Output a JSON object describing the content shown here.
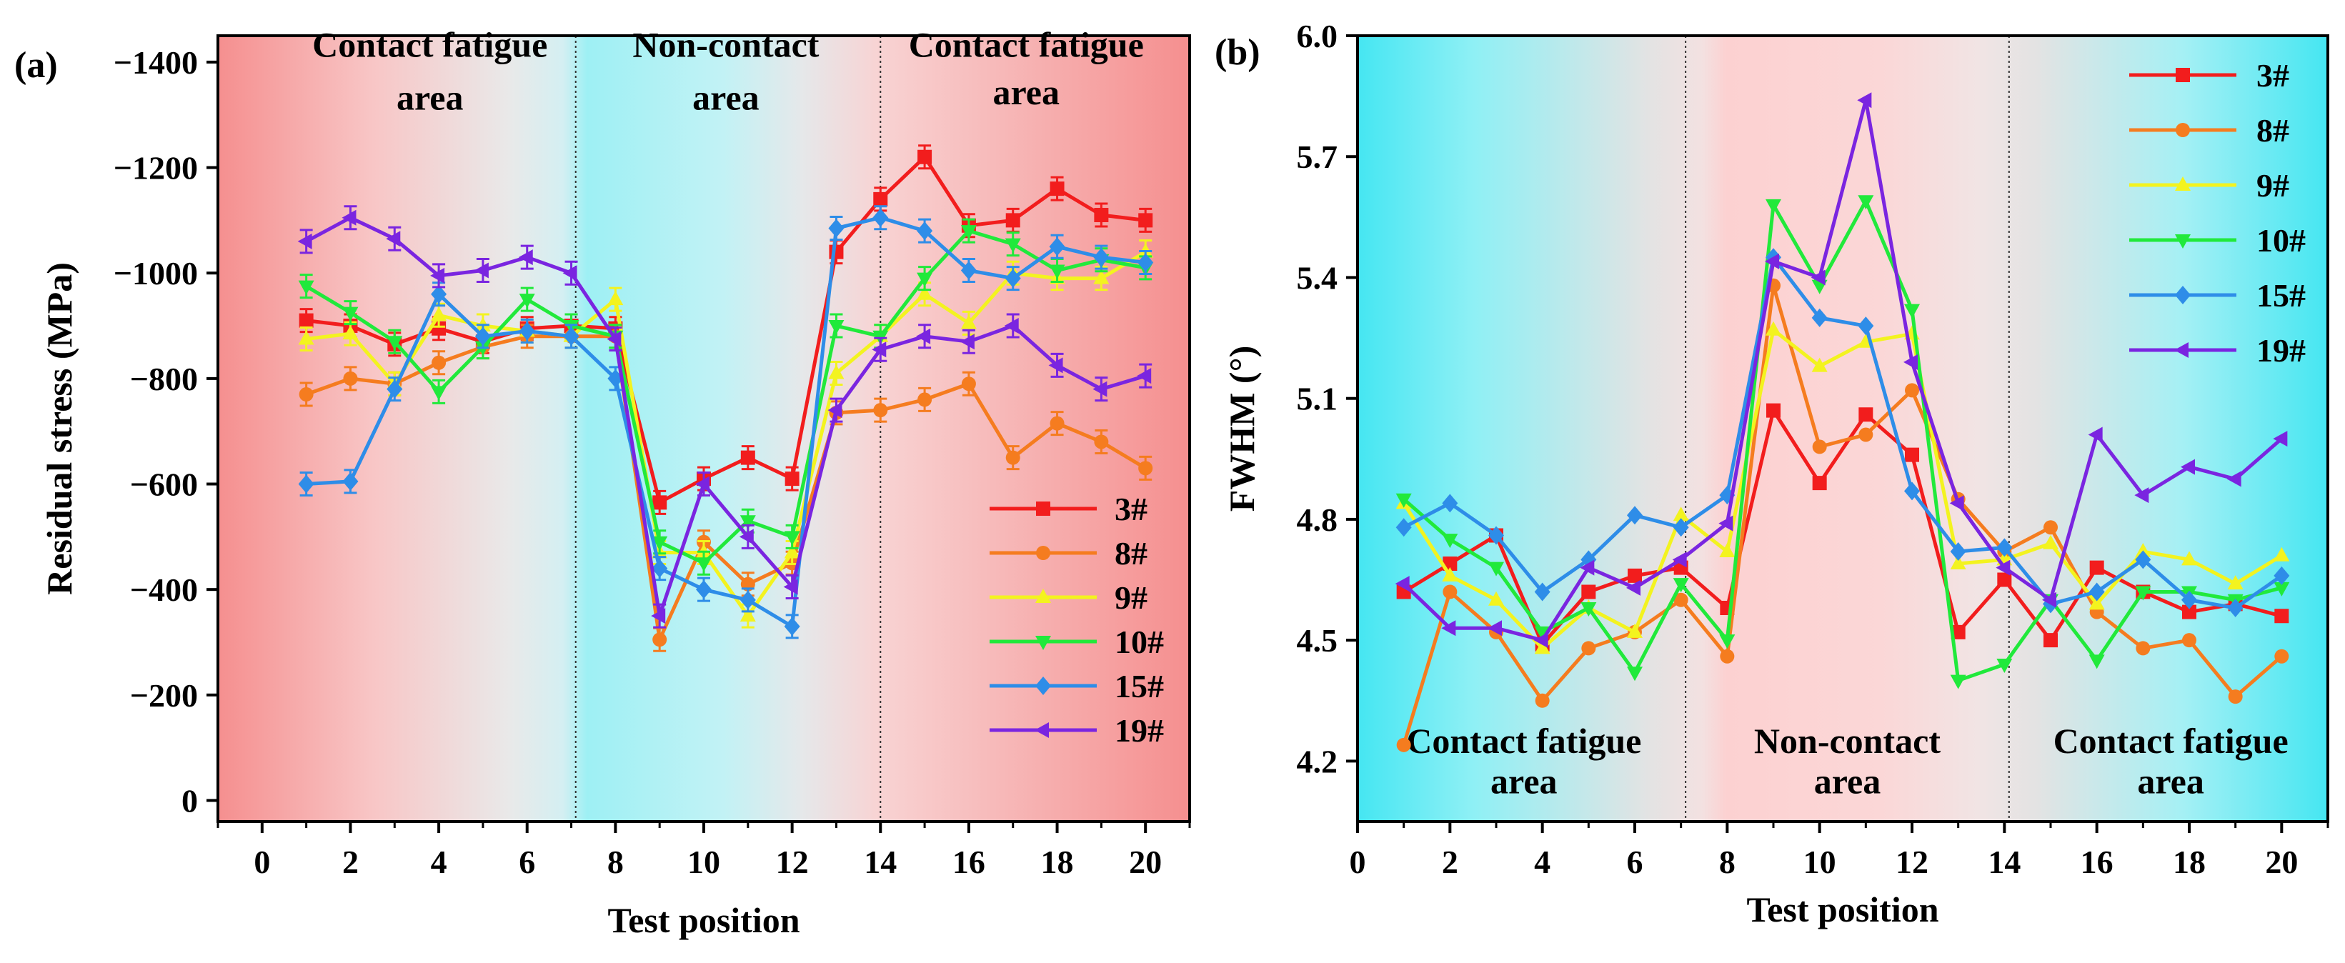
{
  "chart_data": [
    {
      "type": "line",
      "panel_label": "(a)",
      "xlabel": "Test position",
      "ylabel": "Residual stress (MPa)",
      "xlim": [
        -1,
        21
      ],
      "ylim": [
        40,
        -1450
      ],
      "x_ticks": [
        0,
        2,
        4,
        6,
        8,
        10,
        12,
        14,
        16,
        18,
        20
      ],
      "x_tick_labels": [
        "0",
        "2",
        "4",
        "6",
        "8",
        "10",
        "12",
        "14",
        "16",
        "18",
        "20"
      ],
      "y_ticks": [
        -1400,
        -1200,
        -1000,
        -800,
        -600,
        -400,
        -200,
        0
      ],
      "y_tick_labels": [
        "−1400",
        "−1200",
        "−1000",
        "−800",
        "−600",
        "−400",
        "−200",
        "0"
      ],
      "region_dividers": [
        7.1,
        14
      ],
      "region_labels": [
        {
          "line1": "Contact fatigue",
          "line2": "area",
          "x": 3.8,
          "y": -1410,
          "line2_y": -1310
        },
        {
          "line1": "Non-contact",
          "line2": "area",
          "x": 10.5,
          "y": -1410,
          "line2_y": -1310
        },
        {
          "line1": "Contact fatigue",
          "line2": "area",
          "x": 17.3,
          "y": -1410,
          "line2_y": -1320
        }
      ],
      "legend_position": "bottom-right",
      "x": [
        1,
        2,
        3,
        4,
        5,
        6,
        7,
        8,
        9,
        10,
        11,
        12,
        13,
        14,
        15,
        16,
        17,
        18,
        19,
        20
      ],
      "series": [
        {
          "name": "3#",
          "color": "#f21d1d",
          "marker": "square",
          "values": [
            -910,
            -900,
            -865,
            -895,
            -870,
            -895,
            -900,
            -895,
            -565,
            -610,
            -650,
            -610,
            -1040,
            -1140,
            -1220,
            -1090,
            -1100,
            -1160,
            -1110,
            -1100
          ]
        },
        {
          "name": "8#",
          "color": "#f57c1f",
          "marker": "circle",
          "values": [
            -770,
            -800,
            -790,
            -830,
            -860,
            -880,
            -880,
            -880,
            -305,
            -490,
            -410,
            -450,
            -735,
            -740,
            -760,
            -790,
            -650,
            -715,
            -680,
            -630
          ]
        },
        {
          "name": "9#",
          "color": "#f3f31f",
          "marker": "triangle-up",
          "values": [
            -875,
            -885,
            -790,
            -920,
            -900,
            -890,
            -880,
            -950,
            -470,
            -470,
            -350,
            -470,
            -810,
            -880,
            -960,
            -905,
            -1000,
            -990,
            -990,
            -1040
          ]
        },
        {
          "name": "10#",
          "color": "#21e93b",
          "marker": "triangle-down",
          "values": [
            -975,
            -925,
            -870,
            -775,
            -860,
            -950,
            -900,
            -880,
            -490,
            -450,
            -530,
            -500,
            -900,
            -880,
            -990,
            -1080,
            -1055,
            -1005,
            -1025,
            -1010
          ]
        },
        {
          "name": "15#",
          "color": "#2e8de8",
          "marker": "diamond",
          "values": [
            -600,
            -605,
            -780,
            -960,
            -880,
            -890,
            -880,
            -800,
            -440,
            -400,
            -380,
            -330,
            -1085,
            -1105,
            -1080,
            -1005,
            -990,
            -1050,
            -1030,
            -1020
          ]
        },
        {
          "name": "19#",
          "color": "#7a25e0",
          "marker": "triangle-left",
          "values": [
            -1060,
            -1105,
            -1065,
            -995,
            -1005,
            -1030,
            -1000,
            -875,
            -350,
            -600,
            -500,
            -405,
            -740,
            -855,
            -880,
            -870,
            -900,
            -825,
            -780,
            -805
          ]
        }
      ]
    },
    {
      "type": "line",
      "panel_label": "(b)",
      "xlabel": "Test position",
      "ylabel": "FWHM (°)",
      "xlim": [
        0,
        21
      ],
      "ylim": [
        4.05,
        6.0
      ],
      "x_ticks": [
        0,
        2,
        4,
        6,
        8,
        10,
        12,
        14,
        16,
        18,
        20
      ],
      "x_tick_labels": [
        "0",
        "2",
        "4",
        "6",
        "8",
        "10",
        "12",
        "14",
        "16",
        "18",
        "20"
      ],
      "y_ticks": [
        4.2,
        4.5,
        4.8,
        5.1,
        5.4,
        5.7,
        6.0
      ],
      "y_tick_labels": [
        "4.2",
        "4.5",
        "4.8",
        "5.1",
        "5.4",
        "5.7",
        "6.0"
      ],
      "region_dividers": [
        7.1,
        14.1
      ],
      "region_labels": [
        {
          "line1": "Contact fatigue",
          "line2": "area",
          "x": 3.6,
          "y": 4.22,
          "line2_y": 4.12
        },
        {
          "line1": "Non-contact",
          "line2": "area",
          "x": 10.6,
          "y": 4.22,
          "line2_y": 4.12
        },
        {
          "line1": "Contact fatigue",
          "line2": "area",
          "x": 17.6,
          "y": 4.22,
          "line2_y": 4.12
        }
      ],
      "legend_position": "top-right",
      "x": [
        1,
        2,
        3,
        4,
        5,
        6,
        7,
        8,
        9,
        10,
        11,
        12,
        13,
        14,
        15,
        16,
        17,
        18,
        19,
        20
      ],
      "series": [
        {
          "name": "3#",
          "color": "#f21d1d",
          "marker": "square",
          "values": [
            4.62,
            4.69,
            4.76,
            4.49,
            4.62,
            4.66,
            4.68,
            4.58,
            5.07,
            4.89,
            5.06,
            4.96,
            4.52,
            4.65,
            4.5,
            4.68,
            4.62,
            4.57,
            4.59,
            4.56
          ]
        },
        {
          "name": "8#",
          "color": "#f57c1f",
          "marker": "circle",
          "values": [
            4.24,
            4.62,
            4.52,
            4.35,
            4.48,
            4.52,
            4.6,
            4.46,
            5.38,
            4.98,
            5.01,
            5.12,
            4.85,
            4.72,
            4.78,
            4.57,
            4.48,
            4.5,
            4.36,
            4.46
          ]
        },
        {
          "name": "9#",
          "color": "#f3f31f",
          "marker": "triangle-up",
          "values": [
            4.84,
            4.66,
            4.6,
            4.48,
            4.58,
            4.52,
            4.81,
            4.72,
            5.27,
            5.18,
            5.24,
            5.26,
            4.69,
            4.7,
            4.74,
            4.59,
            4.72,
            4.7,
            4.64,
            4.71
          ]
        },
        {
          "name": "10#",
          "color": "#21e93b",
          "marker": "triangle-down",
          "values": [
            4.85,
            4.75,
            4.68,
            4.52,
            4.58,
            4.42,
            4.64,
            4.5,
            5.58,
            5.38,
            5.59,
            5.32,
            4.4,
            4.44,
            4.6,
            4.45,
            4.62,
            4.62,
            4.6,
            4.63
          ]
        },
        {
          "name": "15#",
          "color": "#2e8de8",
          "marker": "diamond",
          "values": [
            4.78,
            4.84,
            4.76,
            4.62,
            4.7,
            4.81,
            4.78,
            4.86,
            5.45,
            5.3,
            5.28,
            4.87,
            4.72,
            4.73,
            4.59,
            4.62,
            4.7,
            4.6,
            4.58,
            4.66
          ]
        },
        {
          "name": "19#",
          "color": "#7a25e0",
          "marker": "triangle-left",
          "values": [
            4.64,
            4.53,
            4.53,
            4.5,
            4.68,
            4.63,
            4.7,
            4.79,
            5.44,
            5.4,
            5.84,
            5.19,
            4.84,
            4.68,
            4.6,
            5.01,
            4.86,
            4.93,
            4.9,
            5.0
          ]
        }
      ]
    }
  ]
}
